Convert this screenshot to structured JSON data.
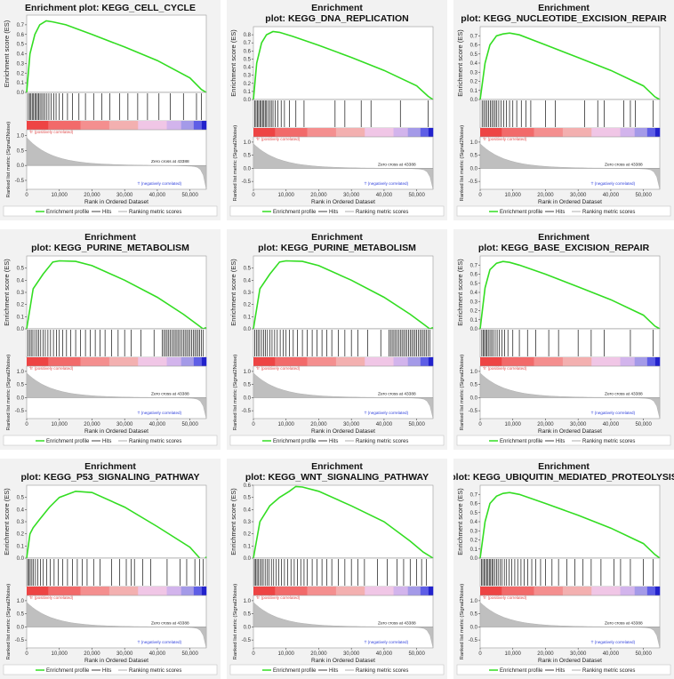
{
  "chart_data": [
    {
      "type": "line",
      "title": "Enrichment plot: KEGG_CELL_CYCLE",
      "es_ylim": [
        0,
        0.8
      ],
      "es_ticks": [
        0.0,
        0.1,
        0.2,
        0.3,
        0.4,
        0.5,
        0.6,
        0.7
      ],
      "es_x": [
        0,
        1000,
        2500,
        4000,
        6000,
        8000,
        12000,
        20000,
        30000,
        40000,
        50000,
        53500,
        55000
      ],
      "es_y": [
        0,
        0.4,
        0.6,
        0.7,
        0.74,
        0.73,
        0.7,
        0.6,
        0.47,
        0.33,
        0.15,
        0.03,
        0.0
      ],
      "hits": [
        500,
        900,
        1300,
        1700,
        2100,
        2500,
        2900,
        3300,
        3700,
        4100,
        4600,
        5100,
        5600,
        6200,
        6800,
        7500,
        8300,
        9000,
        10000,
        11000,
        12500,
        14000,
        16000,
        18000,
        20500,
        23000,
        25500,
        28500,
        31000,
        34000,
        37000,
        40500,
        44000,
        48000,
        52000,
        53500
      ],
      "metric_ticks": [
        1.0,
        0.5,
        0.0,
        -0.5
      ],
      "xlim": [
        0,
        55000
      ],
      "xticks": [
        0,
        10000,
        20000,
        30000,
        40000,
        50000
      ]
    },
    {
      "type": "line",
      "title": "Enrichment plot: KEGG_DNA_REPLICATION",
      "es_ylim": [
        0,
        0.9
      ],
      "es_ticks": [
        0.0,
        0.1,
        0.2,
        0.3,
        0.4,
        0.5,
        0.6,
        0.7,
        0.8
      ],
      "es_x": [
        0,
        1000,
        2500,
        4000,
        6000,
        8000,
        12000,
        20000,
        30000,
        40000,
        50000,
        53500,
        55000
      ],
      "es_y": [
        0,
        0.45,
        0.7,
        0.8,
        0.84,
        0.83,
        0.78,
        0.67,
        0.52,
        0.36,
        0.17,
        0.04,
        0.0
      ],
      "hits": [
        400,
        800,
        1200,
        1600,
        2000,
        2400,
        2800,
        3200,
        3600,
        4000,
        4500,
        5000,
        5500,
        6000,
        6700,
        7500,
        8500,
        9500,
        11000,
        13000,
        15500,
        25000,
        28000,
        33000,
        36000,
        45000,
        53500
      ],
      "metric_ticks": [
        1.0,
        0.5,
        0.0,
        -0.5
      ],
      "xlim": [
        0,
        55000
      ],
      "xticks": [
        0,
        10000,
        20000,
        30000,
        40000,
        50000
      ]
    },
    {
      "type": "line",
      "title": "Enrichment plot: KEGG_NUCLEOTIDE_EXCISION_REPAIR",
      "es_ylim": [
        0,
        0.8
      ],
      "es_ticks": [
        0.0,
        0.1,
        0.2,
        0.3,
        0.4,
        0.5,
        0.6,
        0.7
      ],
      "es_x": [
        0,
        1500,
        3000,
        5000,
        7000,
        9000,
        12000,
        20000,
        30000,
        40000,
        50000,
        53500,
        55000
      ],
      "es_y": [
        0,
        0.4,
        0.6,
        0.7,
        0.72,
        0.73,
        0.71,
        0.6,
        0.46,
        0.32,
        0.15,
        0.03,
        0.0
      ],
      "hits": [
        600,
        1100,
        1600,
        2100,
        2600,
        3100,
        3600,
        4100,
        4600,
        5100,
        5700,
        6400,
        7200,
        8000,
        9000,
        10000,
        11200,
        12600,
        14000,
        15500,
        20000,
        23000,
        32000,
        36000,
        38000,
        44000,
        46000,
        47500,
        53000
      ],
      "metric_ticks": [
        1.0,
        0.5,
        0.0,
        -0.5
      ],
      "xlim": [
        0,
        55000
      ],
      "xticks": [
        0,
        10000,
        20000,
        30000,
        40000,
        50000
      ]
    },
    {
      "type": "line",
      "title": "Enrichment plot: KEGG_PURINE_METABOLISM",
      "es_ylim": [
        0,
        0.6
      ],
      "es_ticks": [
        0.0,
        0.1,
        0.2,
        0.3,
        0.4,
        0.5
      ],
      "es_x": [
        0,
        2000,
        5000,
        8000,
        10000,
        15000,
        20000,
        30000,
        40000,
        48000,
        52000,
        54000,
        55000
      ],
      "es_y": [
        0,
        0.33,
        0.45,
        0.55,
        0.56,
        0.555,
        0.52,
        0.4,
        0.26,
        0.12,
        0.04,
        0.0,
        0.01
      ],
      "hits": [
        400,
        900,
        1400,
        1900,
        2500,
        3100,
        3700,
        4300,
        5000,
        5700,
        6500,
        7300,
        8200,
        9100,
        10000,
        11000,
        12200,
        13500,
        15000,
        16500,
        18000,
        19500,
        21000,
        22500,
        24000,
        26000,
        28000,
        30000,
        32000,
        35000,
        39000,
        41500,
        42000,
        42500,
        43000,
        43500,
        44000,
        44500,
        45000,
        45500,
        46000,
        46500,
        47000,
        47500,
        48000,
        48500,
        49000,
        49500,
        50000,
        50500,
        51000,
        51500,
        52000,
        52500,
        53000,
        53500,
        54000
      ],
      "metric_ticks": [
        1.0,
        0.5,
        0.0,
        -0.5
      ],
      "xlim": [
        0,
        55000
      ],
      "xticks": [
        0,
        10000,
        20000,
        30000,
        40000,
        50000
      ]
    },
    {
      "type": "line",
      "title": "Enrichment plot: KEGG_PURINE_METABOLISM",
      "es_ylim": [
        0,
        0.6
      ],
      "es_ticks": [
        0.0,
        0.1,
        0.2,
        0.3,
        0.4,
        0.5
      ],
      "es_x": [
        0,
        2000,
        5000,
        8000,
        10000,
        15000,
        20000,
        30000,
        40000,
        48000,
        52000,
        54000,
        55000
      ],
      "es_y": [
        0,
        0.33,
        0.45,
        0.55,
        0.56,
        0.555,
        0.52,
        0.4,
        0.26,
        0.12,
        0.04,
        0.0,
        0.01
      ],
      "hits": [
        400,
        900,
        1400,
        1900,
        2500,
        3100,
        3700,
        4300,
        5000,
        5700,
        6500,
        7300,
        8200,
        9100,
        10000,
        11000,
        12200,
        13500,
        15000,
        16500,
        18000,
        19500,
        21000,
        22500,
        24000,
        26000,
        28000,
        30000,
        32000,
        35000,
        39000,
        41500,
        42000,
        42500,
        43000,
        43500,
        44000,
        44500,
        45000,
        45500,
        46000,
        46500,
        47000,
        47500,
        48000,
        48500,
        49000,
        49500,
        50000,
        50500,
        51000,
        51500,
        52000,
        52500,
        53000,
        53500,
        54000
      ],
      "metric_ticks": [
        1.0,
        0.5,
        0.0,
        -0.5
      ],
      "xlim": [
        0,
        55000
      ],
      "xticks": [
        0,
        10000,
        20000,
        30000,
        40000,
        50000
      ]
    },
    {
      "type": "line",
      "title": "Enrichment plot: KEGG_BASE_EXCISION_REPAIR",
      "es_ylim": [
        0,
        0.8
      ],
      "es_ticks": [
        0.0,
        0.1,
        0.2,
        0.3,
        0.4,
        0.5,
        0.6,
        0.7
      ],
      "es_x": [
        0,
        1500,
        3000,
        5000,
        7000,
        9000,
        12000,
        20000,
        30000,
        40000,
        50000,
        53500,
        55000
      ],
      "es_y": [
        0,
        0.45,
        0.65,
        0.72,
        0.74,
        0.73,
        0.7,
        0.6,
        0.46,
        0.32,
        0.15,
        0.03,
        0.0
      ],
      "hits": [
        500,
        900,
        1300,
        1700,
        2100,
        2500,
        3000,
        3500,
        4000,
        4600,
        5200,
        5900,
        6700,
        7500,
        8500,
        10000,
        12000,
        14500,
        17000,
        21000,
        24000,
        30000,
        34000,
        38000,
        46000,
        53000
      ],
      "metric_ticks": [
        1.0,
        0.5,
        0.0,
        -0.5
      ],
      "xlim": [
        0,
        55000
      ],
      "xticks": [
        0,
        10000,
        20000,
        30000,
        40000,
        50000
      ]
    },
    {
      "type": "line",
      "title": "Enrichment plot: KEGG_P53_SIGNALING_PATHWAY",
      "es_ylim": [
        0,
        0.6
      ],
      "es_ticks": [
        0.0,
        0.1,
        0.2,
        0.3,
        0.4,
        0.5
      ],
      "es_x": [
        0,
        1000,
        2000,
        4000,
        7000,
        10000,
        15000,
        20000,
        30000,
        40000,
        50000,
        54000,
        55000
      ],
      "es_y": [
        0,
        0.2,
        0.25,
        0.32,
        0.42,
        0.5,
        0.55,
        0.54,
        0.42,
        0.26,
        0.09,
        -0.03,
        0.01
      ],
      "hits": [
        300,
        700,
        1100,
        1600,
        2100,
        2700,
        3400,
        4200,
        5100,
        6100,
        7200,
        8400,
        9700,
        11000,
        12500,
        14000,
        15500,
        17000,
        18500,
        20500,
        22500,
        26000,
        28500,
        30500,
        32000,
        33000,
        35500,
        38000,
        43000,
        47000,
        49000,
        51500,
        53000,
        54000
      ],
      "metric_ticks": [
        1.0,
        0.5,
        0.0,
        -0.5
      ],
      "xlim": [
        0,
        55000
      ],
      "xticks": [
        0,
        10000,
        20000,
        30000,
        40000,
        50000
      ]
    },
    {
      "type": "line",
      "title": "Enrichment plot: KEGG_WNT_SIGNALING_PATHWAY",
      "es_ylim": [
        0,
        0.6
      ],
      "es_ticks": [
        0.0,
        0.1,
        0.2,
        0.3,
        0.4,
        0.5,
        0.6
      ],
      "es_x": [
        0,
        2000,
        5000,
        8000,
        11000,
        13000,
        15000,
        20000,
        30000,
        40000,
        48000,
        52000,
        55000
      ],
      "es_y": [
        0,
        0.3,
        0.43,
        0.5,
        0.55,
        0.59,
        0.585,
        0.55,
        0.43,
        0.3,
        0.14,
        0.05,
        0.0
      ],
      "hits": [
        300,
        700,
        1100,
        1500,
        2000,
        2500,
        3000,
        3600,
        4200,
        4800,
        5500,
        6200,
        7000,
        7800,
        8600,
        9500,
        10500,
        11500,
        12500,
        13500,
        14500,
        15500,
        16500,
        18000,
        19500,
        21000,
        22500,
        24000,
        26000,
        28000,
        30000,
        32000,
        34000,
        38000,
        41000,
        44000,
        46000,
        48000,
        50000,
        51500,
        53000
      ],
      "metric_ticks": [
        1.0,
        0.5,
        0.0,
        -0.5
      ],
      "xlim": [
        0,
        55000
      ],
      "xticks": [
        0,
        10000,
        20000,
        30000,
        40000,
        50000
      ]
    },
    {
      "type": "line",
      "title": "Enrichment plot: KEGG_UBIQUITIN_MEDIATED_PROTEOLYSIS",
      "es_ylim": [
        0,
        0.8
      ],
      "es_ticks": [
        0.0,
        0.1,
        0.2,
        0.3,
        0.4,
        0.5,
        0.6,
        0.7
      ],
      "es_x": [
        0,
        1500,
        3000,
        5000,
        7000,
        9000,
        12000,
        20000,
        30000,
        40000,
        50000,
        53500,
        55000
      ],
      "es_y": [
        0,
        0.4,
        0.6,
        0.68,
        0.71,
        0.72,
        0.7,
        0.6,
        0.47,
        0.33,
        0.16,
        0.04,
        0.0
      ],
      "hits": [
        400,
        800,
        1200,
        1600,
        2000,
        2400,
        2800,
        3200,
        3600,
        4000,
        4500,
        5000,
        5500,
        6100,
        6700,
        7400,
        8100,
        8900,
        9700,
        10600,
        11500,
        12500,
        13500,
        14600,
        15800,
        17000,
        18500,
        20000,
        22000,
        24000,
        26500,
        29000,
        31500,
        34000,
        37000,
        41000,
        43000,
        46000,
        50000,
        53000
      ],
      "metric_ticks": [
        1.0,
        0.5,
        0.0,
        -0.5
      ],
      "xlim": [
        0,
        55000
      ],
      "xticks": [
        0,
        10000,
        20000,
        30000,
        40000,
        50000
      ]
    }
  ],
  "labels": {
    "es_axis": "Enrichment score (ES)",
    "metric_axis": "Ranked list metric (Signal2Noise)",
    "x_axis": "Rank in Ordered Dataset",
    "pos_label": "'h' (positively correlated)",
    "neg_label": "'l' (negatively correlated)",
    "zero_cross": "Zero cross at 43388",
    "legend": [
      "Enrichment profile",
      "Hits",
      "Ranking metric scores"
    ]
  },
  "colors": {
    "profile": "#33dd22",
    "hits": "#111111",
    "metric": "#bfbfbf",
    "pos_text": "#e05050",
    "neg_text": "#3344dd"
  }
}
